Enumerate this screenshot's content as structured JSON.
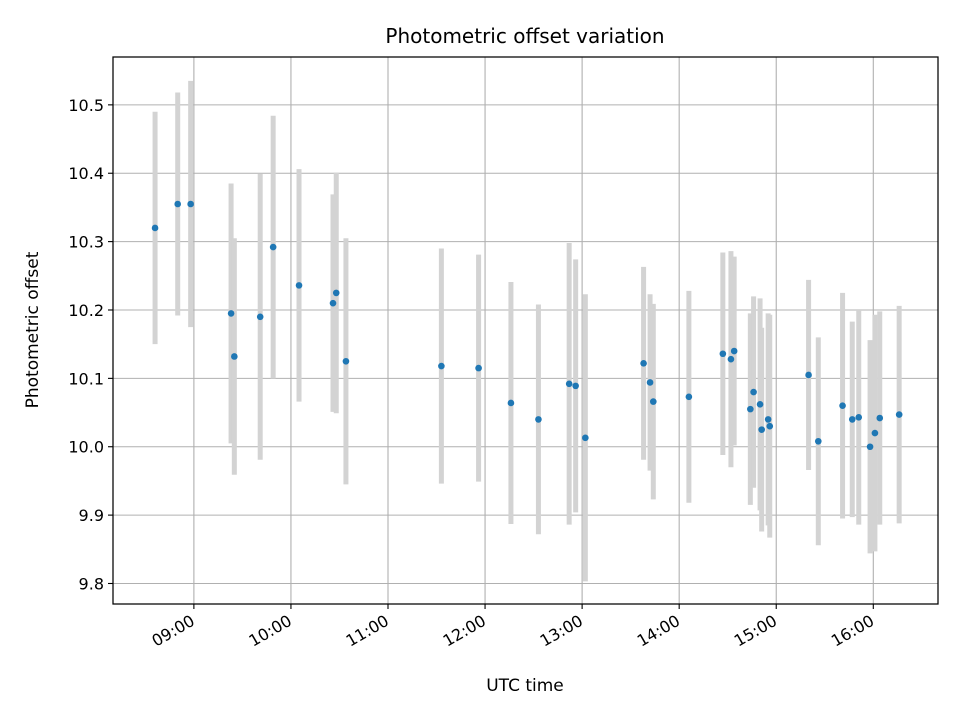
{
  "chart_data": {
    "type": "scatter",
    "title": "Photometric offset variation",
    "xlabel": "UTC time",
    "ylabel": "Photometric offset",
    "x_unit": "UTC time of day (HH:MM)",
    "xlim": [
      "08:10",
      "16:40"
    ],
    "ylim": [
      9.77,
      10.57
    ],
    "x_ticks": [
      "09:00",
      "10:00",
      "11:00",
      "12:00",
      "13:00",
      "14:00",
      "15:00",
      "16:00"
    ],
    "y_ticks": [
      9.8,
      9.9,
      10.0,
      10.1,
      10.2,
      10.3,
      10.4,
      10.5
    ],
    "y_tick_labels": [
      "9.8",
      "9.9",
      "10.0",
      "10.1",
      "10.2",
      "10.3",
      "10.4",
      "10.5"
    ],
    "grid": true,
    "colors": {
      "point": "#1f77b4",
      "errorbar": "#d3d3d3",
      "grid": "#b0b0b0"
    },
    "points": [
      {
        "x": "08:36",
        "y": 10.32,
        "err": 0.17
      },
      {
        "x": "08:50",
        "y": 10.355,
        "err": 0.163
      },
      {
        "x": "08:58",
        "y": 10.355,
        "err": 0.18
      },
      {
        "x": "09:23",
        "y": 10.195,
        "err": 0.19
      },
      {
        "x": "09:25",
        "y": 10.132,
        "err": 0.173
      },
      {
        "x": "09:41",
        "y": 10.19,
        "err": 0.209
      },
      {
        "x": "09:49",
        "y": 10.292,
        "err": 0.192
      },
      {
        "x": "10:05",
        "y": 10.236,
        "err": 0.17
      },
      {
        "x": "10:26",
        "y": 10.21,
        "err": 0.159
      },
      {
        "x": "10:28",
        "y": 10.225,
        "err": 0.176
      },
      {
        "x": "10:34",
        "y": 10.125,
        "err": 0.18
      },
      {
        "x": "11:33",
        "y": 10.118,
        "err": 0.172
      },
      {
        "x": "11:56",
        "y": 10.115,
        "err": 0.166
      },
      {
        "x": "12:16",
        "y": 10.064,
        "err": 0.177
      },
      {
        "x": "12:33",
        "y": 10.04,
        "err": 0.168
      },
      {
        "x": "12:52",
        "y": 10.092,
        "err": 0.206
      },
      {
        "x": "12:56",
        "y": 10.089,
        "err": 0.185
      },
      {
        "x": "13:02",
        "y": 10.013,
        "err": 0.21
      },
      {
        "x": "13:38",
        "y": 10.122,
        "err": 0.141
      },
      {
        "x": "13:42",
        "y": 10.094,
        "err": 0.129
      },
      {
        "x": "13:44",
        "y": 10.066,
        "err": 0.143
      },
      {
        "x": "14:06",
        "y": 10.073,
        "err": 0.155
      },
      {
        "x": "14:27",
        "y": 10.136,
        "err": 0.148
      },
      {
        "x": "14:32",
        "y": 10.128,
        "err": 0.158
      },
      {
        "x": "14:34",
        "y": 10.14,
        "err": 0.138
      },
      {
        "x": "14:44",
        "y": 10.055,
        "err": 0.14
      },
      {
        "x": "14:46",
        "y": 10.08,
        "err": 0.14
      },
      {
        "x": "14:50",
        "y": 10.062,
        "err": 0.155
      },
      {
        "x": "14:51",
        "y": 10.025,
        "err": 0.149
      },
      {
        "x": "14:55",
        "y": 10.04,
        "err": 0.155
      },
      {
        "x": "14:56",
        "y": 10.03,
        "err": 0.163
      },
      {
        "x": "15:20",
        "y": 10.105,
        "err": 0.139
      },
      {
        "x": "15:26",
        "y": 10.008,
        "err": 0.152
      },
      {
        "x": "15:41",
        "y": 10.06,
        "err": 0.165
      },
      {
        "x": "15:47",
        "y": 10.04,
        "err": 0.143
      },
      {
        "x": "15:51",
        "y": 10.043,
        "err": 0.157
      },
      {
        "x": "15:58",
        "y": 10.0,
        "err": 0.156
      },
      {
        "x": "16:01",
        "y": 10.02,
        "err": 0.173
      },
      {
        "x": "16:04",
        "y": 10.042,
        "err": 0.156
      },
      {
        "x": "16:16",
        "y": 10.047,
        "err": 0.159
      }
    ]
  }
}
